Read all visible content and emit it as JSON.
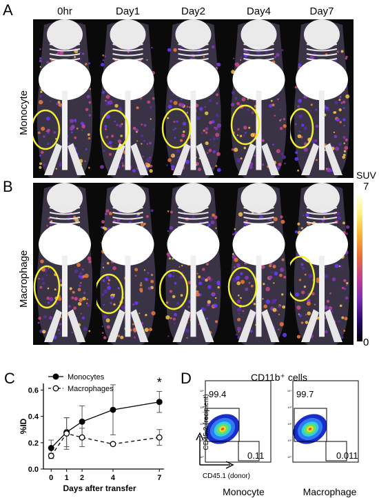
{
  "panels": {
    "A": "A",
    "B": "B",
    "C": "C",
    "D": "D"
  },
  "timepoints": [
    "0hr",
    "Day1",
    "Day2",
    "Day4",
    "Day7"
  ],
  "rows": [
    "Monocyte",
    "Macrophage"
  ],
  "colorbar": {
    "title": "SUV",
    "max": "7",
    "min": "0",
    "colors": [
      "#000000",
      "#2a0a6e",
      "#7b2fb3",
      "#c2418f",
      "#ec6d3a",
      "#f9b233",
      "#fff27a",
      "#ffffff"
    ]
  },
  "chart_data": {
    "type": "line",
    "xlabel": "Days after transfer",
    "ylabel": "%ID",
    "x": [
      0,
      1,
      2,
      4,
      7
    ],
    "xticks": [
      "0",
      "1",
      "2",
      "4",
      "7"
    ],
    "yticks": [
      "0.0",
      "0.2",
      "0.4",
      "0.6"
    ],
    "ylim": [
      0,
      0.65
    ],
    "series": [
      {
        "name": "Monocytes",
        "marker": "filled",
        "line": "solid",
        "values": [
          0.16,
          0.28,
          0.36,
          0.45,
          0.51
        ],
        "errors": [
          0.06,
          0.11,
          0.12,
          0.19,
          0.08
        ]
      },
      {
        "name": "Macrophages",
        "marker": "open",
        "line": "dashed",
        "values": [
          0.1,
          0.27,
          0.24,
          0.19,
          0.24
        ],
        "errors": [
          0.02,
          0.12,
          0.07,
          0.01,
          0.06
        ]
      }
    ],
    "annotation": "*"
  },
  "flow": {
    "title": "CD11b⁺ cells",
    "ylabel": "CD45.2 (recipient)",
    "xlabel": "CD45.1 (donor)",
    "plots": [
      {
        "name": "Monocyte",
        "upper": "99.4",
        "lower": "0.11"
      },
      {
        "name": "Macrophage",
        "upper": "99.7",
        "lower": "0.011"
      }
    ]
  }
}
